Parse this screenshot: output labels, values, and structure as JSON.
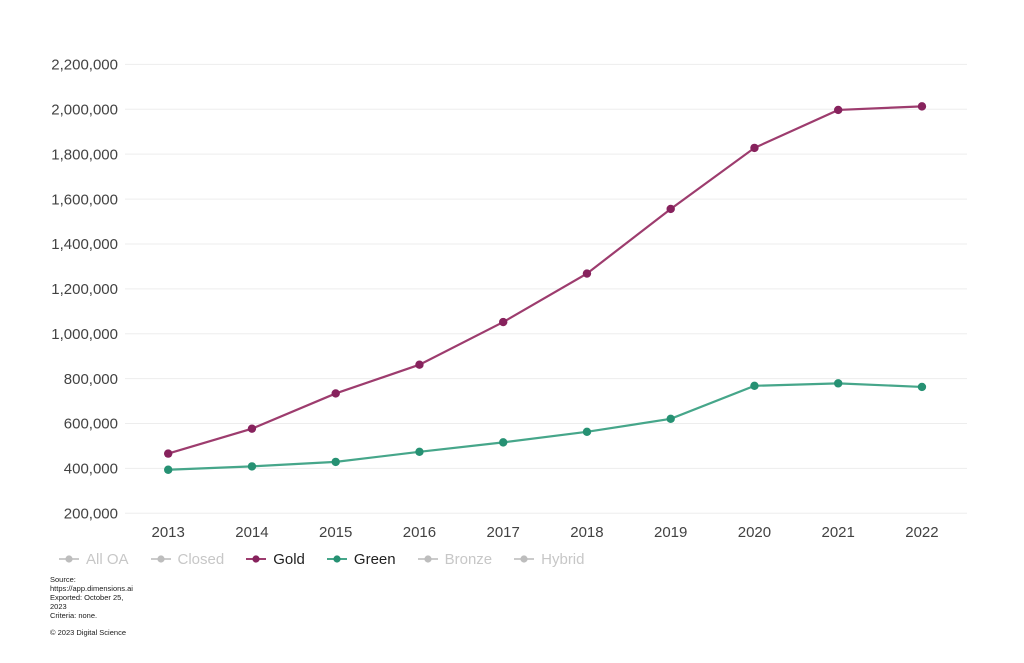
{
  "chart_data": {
    "type": "line",
    "title": "",
    "xlabel": "",
    "ylabel": "",
    "x": [
      "2013",
      "2014",
      "2015",
      "2016",
      "2017",
      "2018",
      "2019",
      "2020",
      "2021",
      "2022"
    ],
    "series": [
      {
        "name": "Gold",
        "line_color": "#9d3c6e",
        "point_color": "#87225d",
        "values": [
          466000,
          577000,
          734000,
          862000,
          1052000,
          1268000,
          1556000,
          1828000,
          1997000,
          2013000
        ]
      },
      {
        "name": "Green",
        "line_color": "#46a68a",
        "point_color": "#269173",
        "values": [
          394000,
          409000,
          429000,
          474000,
          516000,
          563000,
          621000,
          768000,
          779000,
          763000
        ]
      }
    ],
    "ylim": [
      200000,
      2200000
    ],
    "ytick_step": 200000,
    "ytick_labels": [
      "200,000",
      "400,000",
      "600,000",
      "800,000",
      "1,000,000",
      "1,200,000",
      "1,400,000",
      "1,600,000",
      "1,800,000",
      "2,000,000",
      "2,200,000"
    ],
    "grid": "horizontal",
    "gridline_color": "#ededed",
    "axis_text_color": "#424242",
    "legend_position": "bottom"
  },
  "legend": {
    "items": [
      {
        "label": "All OA",
        "active": false,
        "color": "#cbcbcb",
        "point_color": "#bdbdbd"
      },
      {
        "label": "Closed",
        "active": false,
        "color": "#cbcbcb",
        "point_color": "#bdbdbd"
      },
      {
        "label": "Gold",
        "active": true,
        "color": "#9d3c6e",
        "point_color": "#87225d"
      },
      {
        "label": "Green",
        "active": true,
        "color": "#46a68a",
        "point_color": "#269173"
      },
      {
        "label": "Bronze",
        "active": false,
        "color": "#cbcbcb",
        "point_color": "#bdbdbd"
      },
      {
        "label": "Hybrid",
        "active": false,
        "color": "#cbcbcb",
        "point_color": "#bdbdbd"
      }
    ]
  },
  "footer": {
    "source_lines": [
      "Source:",
      "https://app.dimensions.ai",
      "Exported: October 25,",
      "2023",
      "Criteria: none."
    ],
    "copyright": "© 2023 Digital Science"
  }
}
